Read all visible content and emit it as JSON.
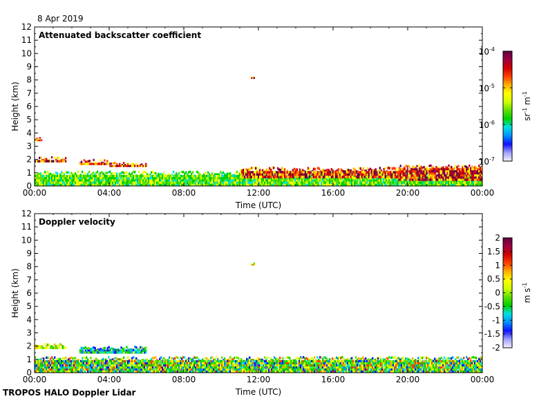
{
  "header": {
    "date": "8 Apr 2019"
  },
  "footer": {
    "label": "TROPOS HALO Doppler Lidar"
  },
  "chart_data": [
    {
      "type": "heatmap",
      "title": "Attenuated backscatter coefficient",
      "xlabel": "Time (UTC)",
      "ylabel": "Height (km)",
      "xlim": [
        0,
        24
      ],
      "ylim": [
        0,
        12
      ],
      "x_tick_labels": [
        "00:00",
        "04:00",
        "08:00",
        "12:00",
        "16:00",
        "20:00",
        "00:00"
      ],
      "y_ticks": [
        0,
        1,
        2,
        3,
        4,
        5,
        6,
        7,
        8,
        9,
        10,
        11,
        12
      ],
      "colorbar": {
        "scale": "log",
        "range": [
          1e-07,
          0.0001
        ],
        "tick_labels": [
          {
            "base": "10",
            "exp": "-4"
          },
          {
            "base": "10",
            "exp": "-5"
          },
          {
            "base": "10",
            "exp": "-6"
          },
          {
            "base": "10",
            "exp": "-7"
          }
        ],
        "unit": {
          "p1": "sr",
          "e1": "-1",
          "p2": " m",
          "e2": "-1"
        },
        "colors": [
          "#f2f2ff",
          "#a0a0ff",
          "#1010ff",
          "#0090ff",
          "#00e0e0",
          "#00d000",
          "#60e000",
          "#d0ff00",
          "#ffff00",
          "#ffb000",
          "#ff4000",
          "#d00000",
          "#a00040",
          "#600040"
        ]
      },
      "features": [
        {
          "kind": "boundary_layer_aerosol",
          "t_start": 0.0,
          "t_end": 10.0,
          "h_bottom": 0.0,
          "h_top": 1.0,
          "value_class": "medium"
        },
        {
          "kind": "boundary_layer_aerosol",
          "t_start": 10.0,
          "t_end": 24.0,
          "h_bottom": 0.0,
          "h_top": 1.0,
          "value_class": "medium"
        },
        {
          "kind": "cloud_layer",
          "t_start": 0.0,
          "t_end": 1.7,
          "h_bottom": 1.8,
          "h_top": 2.1,
          "value_class": "high"
        },
        {
          "kind": "cloud_layer",
          "t_start": 2.4,
          "t_end": 4.0,
          "h_bottom": 1.6,
          "h_top": 1.9,
          "value_class": "high"
        },
        {
          "kind": "cloud_layer",
          "t_start": 4.0,
          "t_end": 6.0,
          "h_bottom": 1.45,
          "h_top": 1.7,
          "value_class": "high"
        },
        {
          "kind": "cloud_layer",
          "t_start": 11.0,
          "t_end": 19.5,
          "h_bottom": 0.6,
          "h_top": 1.3,
          "value_class": "high"
        },
        {
          "kind": "cloud_layer",
          "t_start": 19.5,
          "t_end": 24.0,
          "h_bottom": 0.4,
          "h_top": 1.5,
          "value_class": "high"
        },
        {
          "kind": "isolated_echo",
          "t_start": 0.0,
          "t_end": 0.4,
          "h_bottom": 3.4,
          "h_top": 3.6,
          "value_class": "high"
        },
        {
          "kind": "isolated_echo",
          "t_start": 11.6,
          "t_end": 11.8,
          "h_bottom": 8.1,
          "h_top": 8.3,
          "value_class": "high"
        }
      ]
    },
    {
      "type": "heatmap",
      "title": "Doppler velocity",
      "xlabel": "Time (UTC)",
      "ylabel": "Height (km)",
      "xlim": [
        0,
        24
      ],
      "ylim": [
        0,
        12
      ],
      "x_tick_labels": [
        "00:00",
        "04:00",
        "08:00",
        "12:00",
        "16:00",
        "20:00",
        "00:00"
      ],
      "y_ticks": [
        0,
        1,
        2,
        3,
        4,
        5,
        6,
        7,
        8,
        9,
        10,
        11,
        12
      ],
      "colorbar": {
        "scale": "linear",
        "range": [
          -2,
          2
        ],
        "tick_labels": [
          "2",
          "1.5",
          "1",
          "0.5",
          "0",
          "-0.5",
          "-1",
          "-1.5",
          "-2"
        ],
        "unit": {
          "p1": "m",
          "p2": " s",
          "e2": "-1"
        },
        "colors": [
          "#f2f2ff",
          "#a0a0ff",
          "#1010ff",
          "#0090ff",
          "#00e0e0",
          "#00d000",
          "#60e000",
          "#d0ff00",
          "#ffff00",
          "#ffb000",
          "#ff4000",
          "#d00000",
          "#a00040",
          "#600040"
        ]
      },
      "features": [
        {
          "kind": "boundary_layer_velocity",
          "t_start": 0.0,
          "t_end": 24.0,
          "h_bottom": 0.0,
          "h_top": 1.1,
          "value_class": "mixed"
        },
        {
          "kind": "cloud_velocity",
          "t_start": 0.0,
          "t_end": 1.7,
          "h_bottom": 1.8,
          "h_top": 2.1,
          "value_class": "near_zero"
        },
        {
          "kind": "cloud_velocity",
          "t_start": 2.4,
          "t_end": 6.0,
          "h_bottom": 1.45,
          "h_top": 1.9,
          "value_class": "negative"
        },
        {
          "kind": "isolated_echo",
          "t_start": 11.6,
          "t_end": 11.8,
          "h_bottom": 8.1,
          "h_top": 8.3,
          "value_class": "near_zero"
        }
      ]
    }
  ]
}
